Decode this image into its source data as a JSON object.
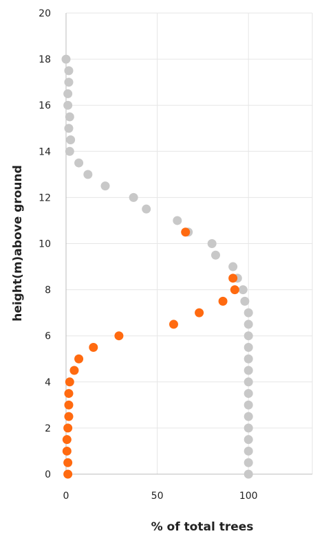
{
  "chart_data": {
    "type": "scatter",
    "title": "",
    "xlabel": "% of total trees",
    "ylabel": "height(m)above ground",
    "xlim": [
      0,
      135
    ],
    "ylim": [
      0,
      20
    ],
    "xticks": [
      "0",
      "50",
      "100"
    ],
    "yticks": [
      "0",
      "2",
      "4",
      "6",
      "8",
      "10",
      "12",
      "14",
      "16",
      "18",
      "20"
    ],
    "grid": true,
    "legend": "none",
    "series": [
      {
        "color": "#c8c8c8",
        "points": [
          [
            0,
            18
          ],
          [
            1.5,
            17.5
          ],
          [
            1.5,
            17
          ],
          [
            1,
            16.5
          ],
          [
            1,
            16
          ],
          [
            2,
            15.5
          ],
          [
            1.5,
            15
          ],
          [
            2.5,
            14.5
          ],
          [
            2,
            14
          ],
          [
            7,
            13.5
          ],
          [
            12,
            13
          ],
          [
            21.5,
            12.5
          ],
          [
            37,
            12
          ],
          [
            44,
            11.5
          ],
          [
            61,
            11
          ],
          [
            67,
            10.5
          ],
          [
            80,
            10
          ],
          [
            82,
            9.5
          ],
          [
            91.5,
            9
          ],
          [
            94,
            8.5
          ],
          [
            97,
            8
          ],
          [
            98,
            7.5
          ],
          [
            100,
            7
          ],
          [
            100,
            6.5
          ],
          [
            100,
            6
          ],
          [
            100,
            5.5
          ],
          [
            100,
            5
          ],
          [
            100,
            4.5
          ],
          [
            100,
            4
          ],
          [
            100,
            3.5
          ],
          [
            100,
            3
          ],
          [
            100,
            2.5
          ],
          [
            100,
            2
          ],
          [
            100,
            1.5
          ],
          [
            100,
            1
          ],
          [
            100,
            0.5
          ],
          [
            100,
            0
          ]
        ]
      },
      {
        "color": "#ff6a10",
        "points": [
          [
            65.5,
            10.5
          ],
          [
            91.5,
            8.5
          ],
          [
            92.5,
            8
          ],
          [
            86,
            7.5
          ],
          [
            73,
            7
          ],
          [
            59,
            6.5
          ],
          [
            29,
            6
          ],
          [
            15,
            5.5
          ],
          [
            7,
            5
          ],
          [
            4.5,
            4.5
          ],
          [
            2,
            4
          ],
          [
            1.5,
            3.5
          ],
          [
            1.5,
            3
          ],
          [
            1.5,
            2.5
          ],
          [
            1,
            2
          ],
          [
            0.5,
            1.5
          ],
          [
            0.5,
            1
          ],
          [
            1,
            0.5
          ],
          [
            1,
            0
          ]
        ]
      }
    ]
  }
}
